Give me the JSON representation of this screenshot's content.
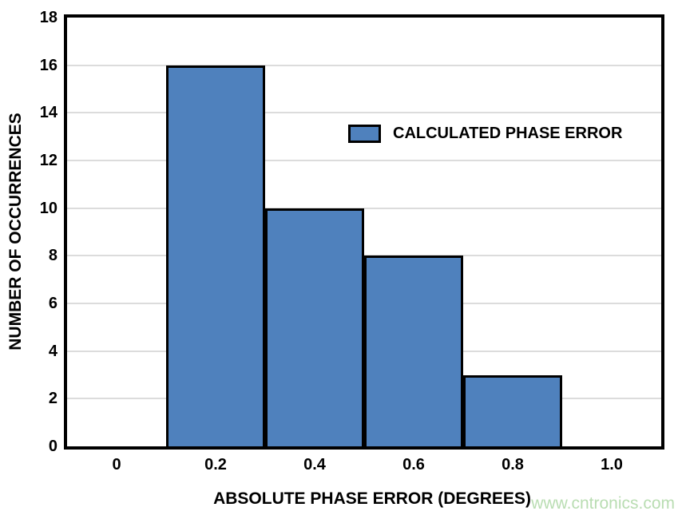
{
  "watermark": "www.cntronics.com",
  "colors": {
    "bar_fill": "#4f81bd",
    "bar_border": "#000000",
    "gridline": "#dcdcdc",
    "axis_frame": "#000000",
    "watermark": "#b9ddb2",
    "background": "#ffffff"
  },
  "chart_data": {
    "type": "bar",
    "title": "",
    "xlabel": "ABSOLUTE PHASE ERROR (DEGREES)",
    "ylabel": "NUMBER OF OCCURRENCES",
    "categories": [
      "0",
      "0.2",
      "0.4",
      "0.6",
      "0.8",
      "1.0"
    ],
    "values": [
      0,
      16,
      10,
      8,
      3,
      0
    ],
    "ylim": [
      0,
      18
    ],
    "yticks": [
      0,
      2,
      4,
      6,
      8,
      10,
      12,
      14,
      16,
      18
    ],
    "bar_gap": 0,
    "grid": true,
    "legend": {
      "label": "CALCULATED PHASE ERROR",
      "position": "inside-top-center-right"
    }
  }
}
